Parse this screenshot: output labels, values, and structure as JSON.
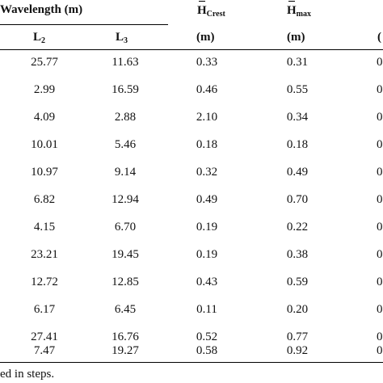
{
  "header": {
    "group_label": "Wavelength (m)",
    "col_h_crest": {
      "symbol": "H",
      "sub": "Crest"
    },
    "col_h_max": {
      "symbol": "H",
      "sub": "max"
    },
    "col_l2": {
      "symbol": "L",
      "sub": "2"
    },
    "col_l3": {
      "symbol": "L",
      "sub": "3"
    },
    "unit_h_crest": "(m)",
    "unit_h_max": "(m)",
    "unit_next": "("
  },
  "rows": [
    {
      "l2": "25.77",
      "l3": "11.63",
      "h_crest": "0.33",
      "h_max": "0.31",
      "next": "0"
    },
    {
      "l2": "2.99",
      "l3": "16.59",
      "h_crest": "0.46",
      "h_max": "0.55",
      "next": "0"
    },
    {
      "l2": "4.09",
      "l3": "2.88",
      "h_crest": "2.10",
      "h_max": "0.34",
      "next": "0"
    },
    {
      "l2": "10.01",
      "l3": "5.46",
      "h_crest": "0.18",
      "h_max": "0.18",
      "next": "0"
    },
    {
      "l2": "10.97",
      "l3": "9.14",
      "h_crest": "0.32",
      "h_max": "0.49",
      "next": "0"
    },
    {
      "l2": "6.82",
      "l3": "12.94",
      "h_crest": "0.49",
      "h_max": "0.70",
      "next": "0"
    },
    {
      "l2": "4.15",
      "l3": "6.70",
      "h_crest": "0.19",
      "h_max": "0.22",
      "next": "0"
    },
    {
      "l2": "23.21",
      "l3": "19.45",
      "h_crest": "0.19",
      "h_max": "0.38",
      "next": "0"
    },
    {
      "l2": "12.72",
      "l3": "12.85",
      "h_crest": "0.43",
      "h_max": "0.59",
      "next": "0"
    },
    {
      "l2": "6.17",
      "l3": "6.45",
      "h_crest": "0.11",
      "h_max": "0.20",
      "next": "0"
    },
    {
      "l2": "27.41",
      "l3": "16.76",
      "h_crest": "0.52",
      "h_max": "0.77",
      "next": "0"
    },
    {
      "l2": "7.47",
      "l3": "19.27",
      "h_crest": "0.58",
      "h_max": "0.92",
      "next": "0"
    }
  ],
  "footnote": "ed in steps."
}
